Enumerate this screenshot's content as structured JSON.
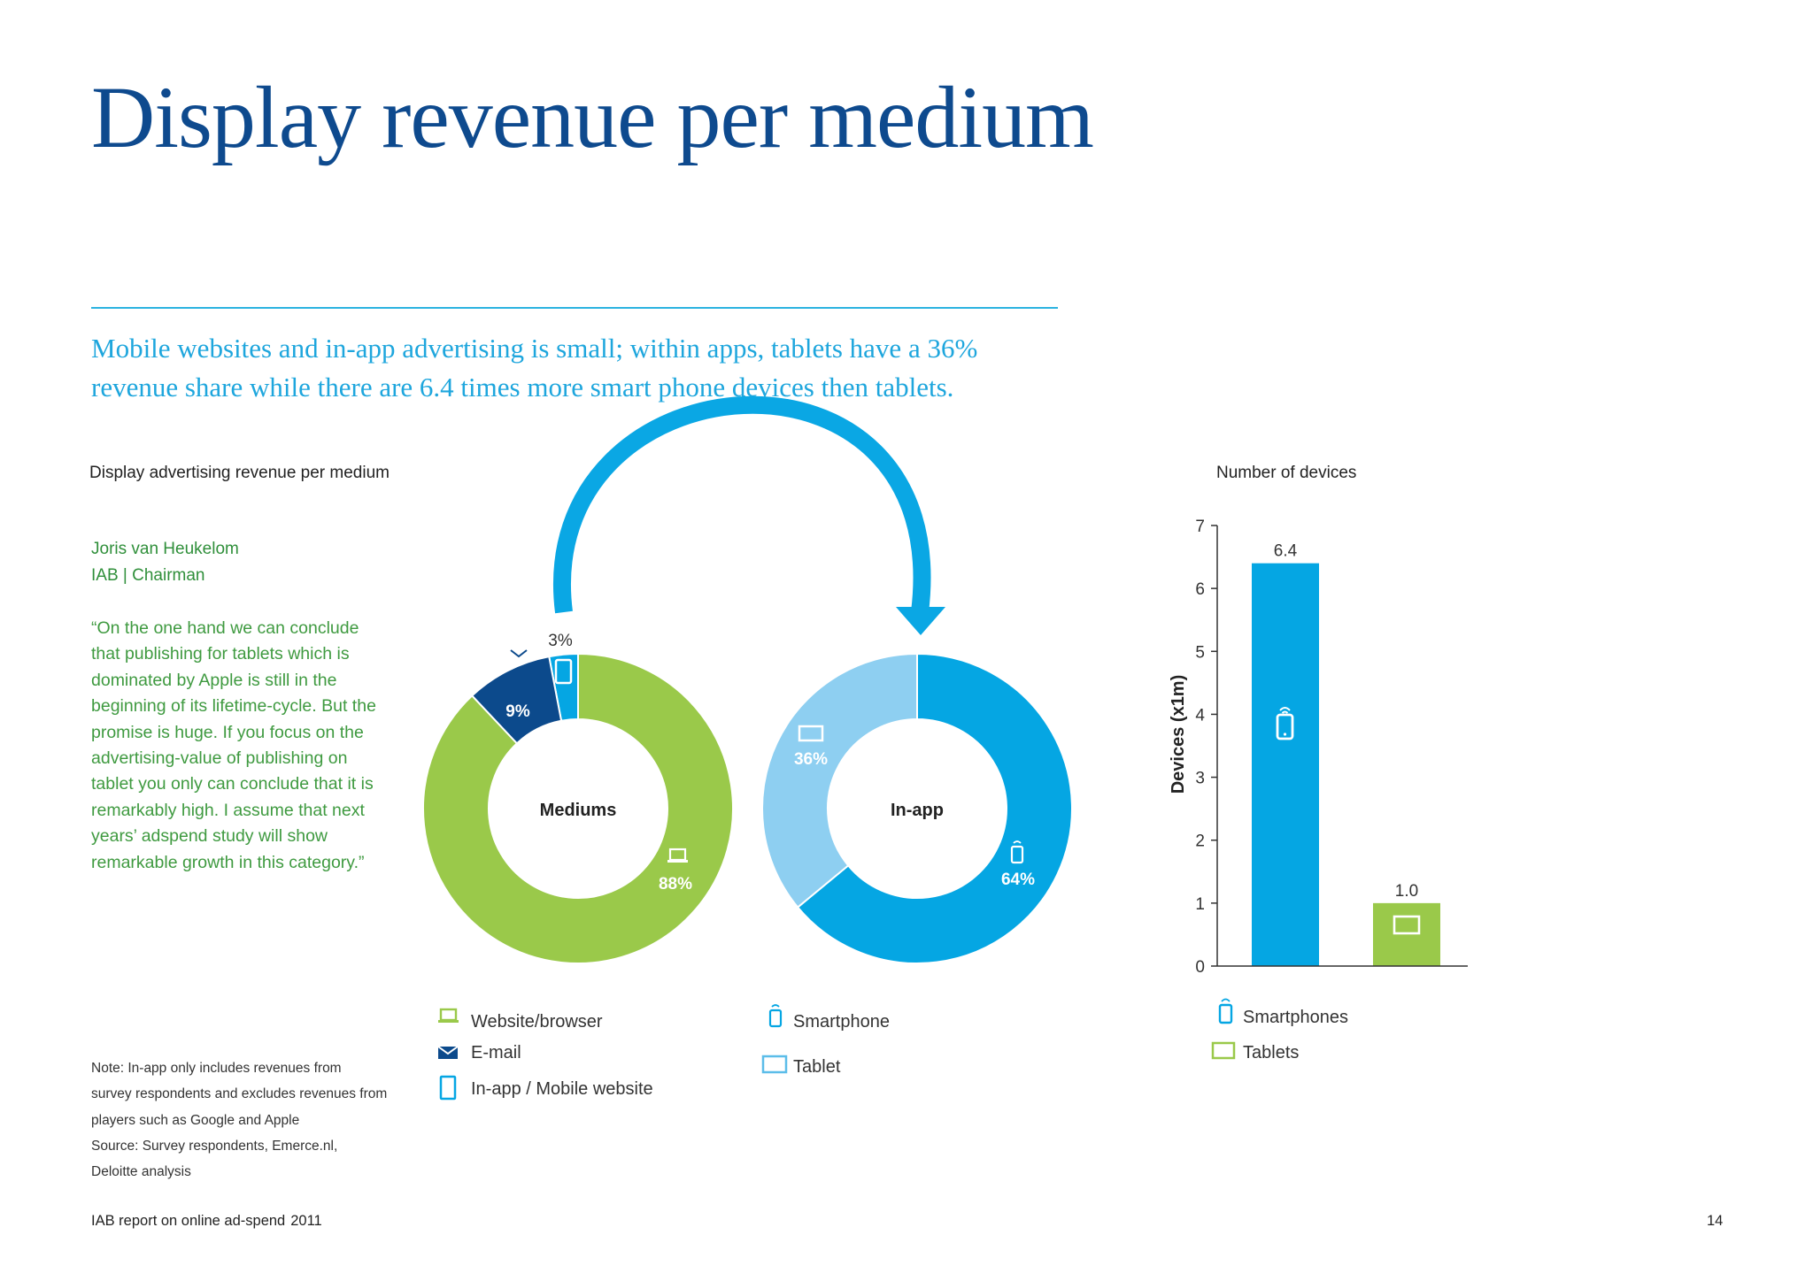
{
  "page": {
    "title": "Display revenue per medium",
    "subtitle": "Mobile websites and in-app advertising is small; within apps, tablets have a 36% revenue share while there are 6.4 times more smart phone devices then tablets.",
    "footer": {
      "report": "IAB report on online ad-spend",
      "year": "2011",
      "page_number": "14"
    }
  },
  "quote": {
    "author": "Joris van Heukelom",
    "role": "IAB | Chairman",
    "text": "“On the one hand we can conclude that publishing for tablets which is dominated by Apple is still in the beginning of its lifetime-cycle. But the promise is huge. If you focus on the advertising-value of  publishing on tablet you only can conclude that it is remarkably high. I assume that next years’ adspend study will show remarkable growth in this category.”"
  },
  "note": {
    "lines": [
      "Note: In-app only includes revenues from",
      "survey respondents and excludes revenues from",
      "players such as Google and Apple",
      "Source: Survey respondents, Emerce.nl,",
      "Deloitte analysis"
    ]
  },
  "colors": {
    "green": "#9ac94a",
    "navy": "#0c4a8c",
    "blue": "#05a6e3",
    "light_blue": "#8ecff1",
    "arrow": "#0aa7e4"
  },
  "chart_data": [
    {
      "type": "pie",
      "title": "Display advertising revenue per medium",
      "center_label": "Mediums",
      "slices": [
        {
          "name": "Website/browser",
          "value": 88,
          "label": "88%",
          "color": "#9ac94a",
          "icon": "laptop-icon"
        },
        {
          "name": "E-mail",
          "value": 9,
          "label": "9%",
          "color": "#0c4a8c",
          "icon": "envelope-icon"
        },
        {
          "name": "In-app / Mobile website",
          "value": 3,
          "label": "3%",
          "color": "#05a6e3",
          "icon": "mobile-icon"
        }
      ],
      "legend": [
        "Website/browser",
        "E-mail",
        "In-app / Mobile website"
      ]
    },
    {
      "type": "pie",
      "center_label": "In-app",
      "slices": [
        {
          "name": "Smartphone",
          "value": 64,
          "label": "64%",
          "color": "#05a6e3",
          "icon": "smartphone-icon"
        },
        {
          "name": "Tablet",
          "value": 36,
          "label": "36%",
          "color": "#8ecff1",
          "icon": "tablet-icon"
        }
      ],
      "legend": [
        "Smartphone",
        "Tablet"
      ]
    },
    {
      "type": "bar",
      "title": "Number of devices",
      "ylabel": "Devices (x1m)",
      "categories": [
        "Smartphones",
        "Tablets"
      ],
      "values": [
        6.4,
        1.0
      ],
      "value_labels": [
        "6.4",
        "1.0"
      ],
      "colors": [
        "#05a6e3",
        "#9ac94a"
      ],
      "ylim": [
        0,
        7
      ],
      "yticks": [
        "0",
        "1",
        "2",
        "3",
        "4",
        "5",
        "6",
        "7"
      ],
      "legend": [
        "Smartphones",
        "Tablets"
      ],
      "grid": false
    }
  ]
}
